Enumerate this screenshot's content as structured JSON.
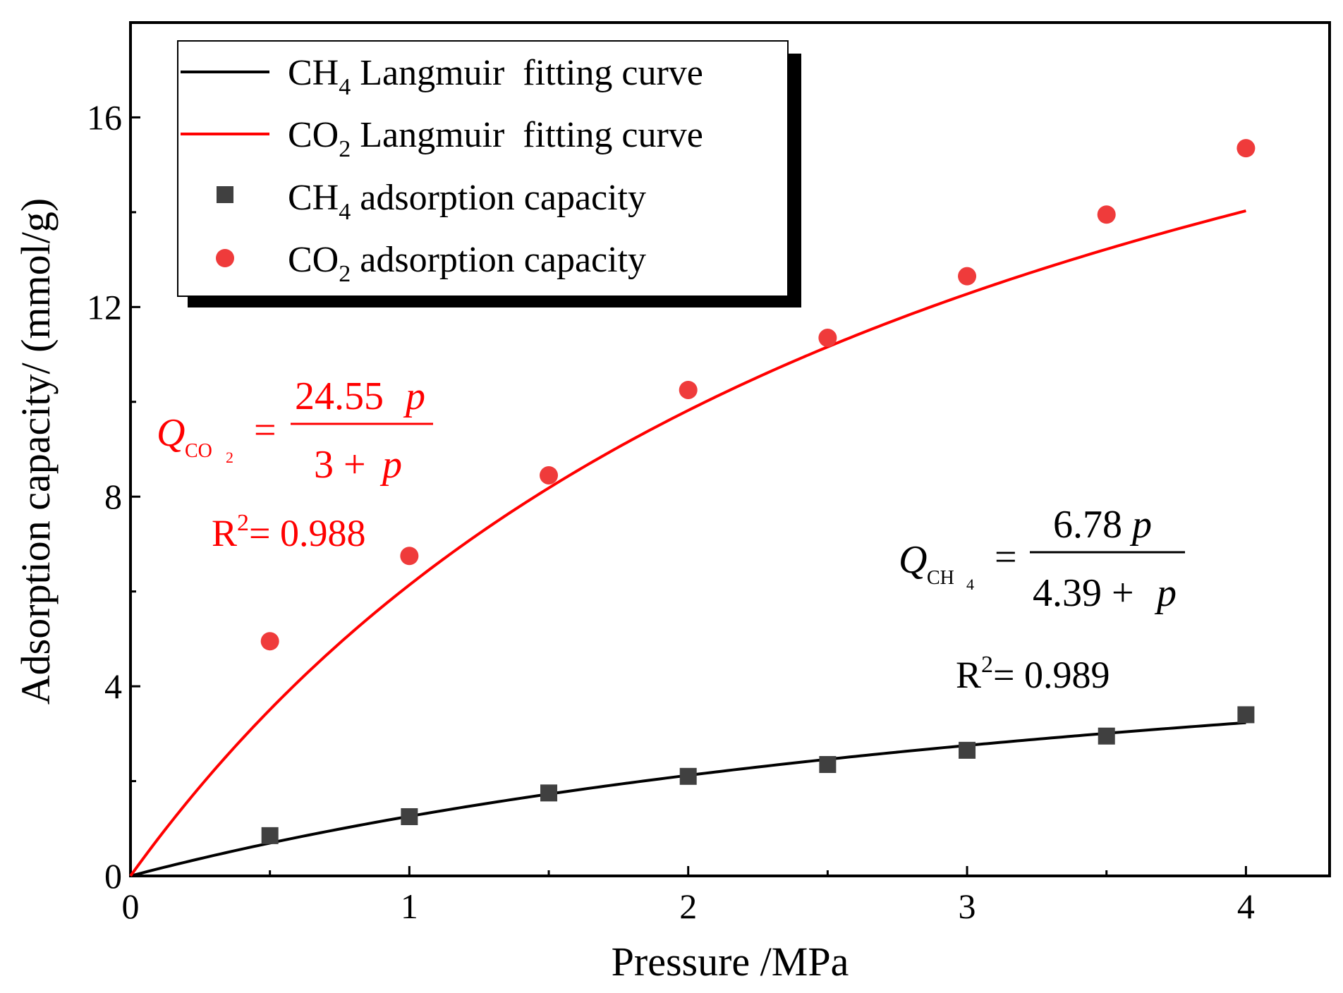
{
  "chart_data": {
    "type": "scatter",
    "xlabel": "Pressure  /MPa",
    "ylabel": "Adsorption capacity/  (mmol/g)",
    "xlim": [
      0,
      4.3
    ],
    "ylim": [
      0,
      18
    ],
    "xticks": [
      0,
      1,
      2,
      3,
      4
    ],
    "yticks": [
      0,
      4,
      8,
      12,
      16
    ],
    "xtick_labels": [
      "0",
      "1",
      "2",
      "3",
      "4"
    ],
    "ytick_labels": [
      "0",
      "4",
      "8",
      "12",
      "16"
    ],
    "legend_position": "top-left",
    "series": [
      {
        "name": "CH4 Langmuir fitting curve",
        "kind": "line",
        "color": "#000000",
        "formula": {
          "a": 6.78,
          "b": 4.39
        },
        "x_range": [
          0,
          4
        ]
      },
      {
        "name": "CO2 Langmuir fitting curve",
        "kind": "line",
        "color": "#ff0000",
        "formula": {
          "a": 24.55,
          "b": 3
        },
        "x_range": [
          0,
          4
        ]
      },
      {
        "name": "CH4 adsorption capacity",
        "kind": "scatter",
        "marker": "square",
        "color": "#404040",
        "x": [
          0.5,
          1.0,
          1.5,
          2.0,
          2.5,
          3.0,
          3.5,
          4.0
        ],
        "y": [
          0.85,
          1.25,
          1.75,
          2.1,
          2.35,
          2.65,
          2.95,
          3.4
        ]
      },
      {
        "name": "CO2 adsorption capacity",
        "kind": "scatter",
        "marker": "circle",
        "color": "#ef3b3b",
        "x": [
          0.5,
          1.0,
          1.5,
          2.0,
          2.5,
          3.0,
          3.5,
          4.0
        ],
        "y": [
          4.95,
          6.75,
          8.45,
          10.25,
          11.35,
          12.65,
          13.95,
          15.35
        ]
      }
    ],
    "legend": {
      "items": [
        {
          "main": "CH",
          "sub": "4",
          "rest": " Langmuir  fitting curve"
        },
        {
          "main": "CO",
          "sub": "2",
          "rest": " Langmuir  fitting curve"
        },
        {
          "main": "CH",
          "sub": "4",
          "rest": " adsorption capacity"
        },
        {
          "main": "CO",
          "sub": "2",
          "rest": " adsorption capacity"
        }
      ]
    },
    "annotations": {
      "co2_equation": {
        "q": "Q",
        "sub": "CO",
        "sub2": "2",
        "equals": "=",
        "numerator": "24.55",
        "numerator_var": "p",
        "denominator": "3 + ",
        "denominator_var": "p",
        "r2_label": "R",
        "r2_exp": "2",
        "r2_value": "= 0.988"
      },
      "ch4_equation": {
        "q": "Q",
        "sub": "CH",
        "sub2": "4",
        "equals": "=",
        "numerator": "6.78",
        "numerator_var": "p",
        "denominator": "4.39 + ",
        "denominator_var": "p",
        "r2_label": "R",
        "r2_exp": "2",
        "r2_value": "= 0.989"
      }
    }
  }
}
